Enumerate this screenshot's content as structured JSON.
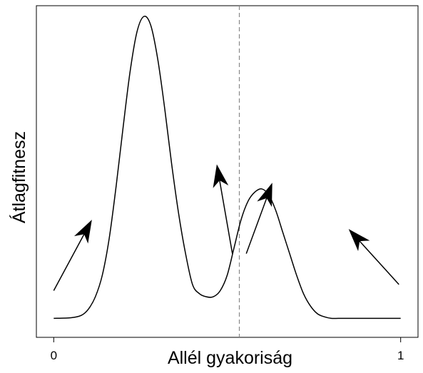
{
  "chart_data": {
    "type": "line",
    "xlabel": "Allél gyakoriság",
    "ylabel": "Átlagfitnesz",
    "xlim": [
      -0.05,
      1.05
    ],
    "ylim": [
      0,
      1
    ],
    "x_ticks": [
      0,
      1
    ],
    "x_tick_labels": [
      "0",
      "1"
    ],
    "y_ticks": [],
    "grid": false,
    "legend": "none",
    "colors": {
      "line": "#000000",
      "marker_line": "#888888"
    },
    "series": [
      {
        "x": [
          0.0,
          0.05,
          0.08,
          0.1,
          0.12,
          0.14,
          0.16,
          0.18,
          0.2,
          0.22,
          0.24,
          0.26,
          0.28,
          0.3,
          0.32,
          0.34,
          0.36,
          0.38,
          0.4,
          0.42,
          0.44,
          0.46,
          0.48,
          0.5,
          0.52,
          0.54,
          0.56,
          0.58,
          0.6,
          0.62,
          0.64,
          0.66,
          0.68,
          0.7,
          0.72,
          0.74,
          0.76,
          0.78,
          0.8,
          0.82,
          0.84,
          0.86,
          0.88,
          0.9,
          0.95,
          1.0
        ],
        "y": [
          0.02,
          0.022,
          0.03,
          0.05,
          0.09,
          0.16,
          0.28,
          0.45,
          0.64,
          0.82,
          0.95,
          1.0,
          0.97,
          0.86,
          0.7,
          0.52,
          0.36,
          0.23,
          0.13,
          0.1,
          0.09,
          0.09,
          0.11,
          0.16,
          0.25,
          0.34,
          0.4,
          0.43,
          0.44,
          0.42,
          0.37,
          0.3,
          0.23,
          0.16,
          0.1,
          0.06,
          0.035,
          0.025,
          0.02,
          0.02,
          0.02,
          0.02,
          0.02,
          0.02,
          0.02,
          0.02
        ]
      }
    ],
    "vertical_lines": [
      {
        "x": 0.535,
        "style": "dashed"
      }
    ],
    "arrows": [
      {
        "from": [
          0.0,
          0.11
        ],
        "to": [
          0.11,
          0.34
        ]
      },
      {
        "from": [
          0.515,
          0.23
        ],
        "to": [
          0.47,
          0.52
        ]
      },
      {
        "from": [
          0.555,
          0.23
        ],
        "to": [
          0.63,
          0.46
        ]
      },
      {
        "from": [
          0.995,
          0.13
        ],
        "to": [
          0.85,
          0.31
        ]
      }
    ]
  }
}
